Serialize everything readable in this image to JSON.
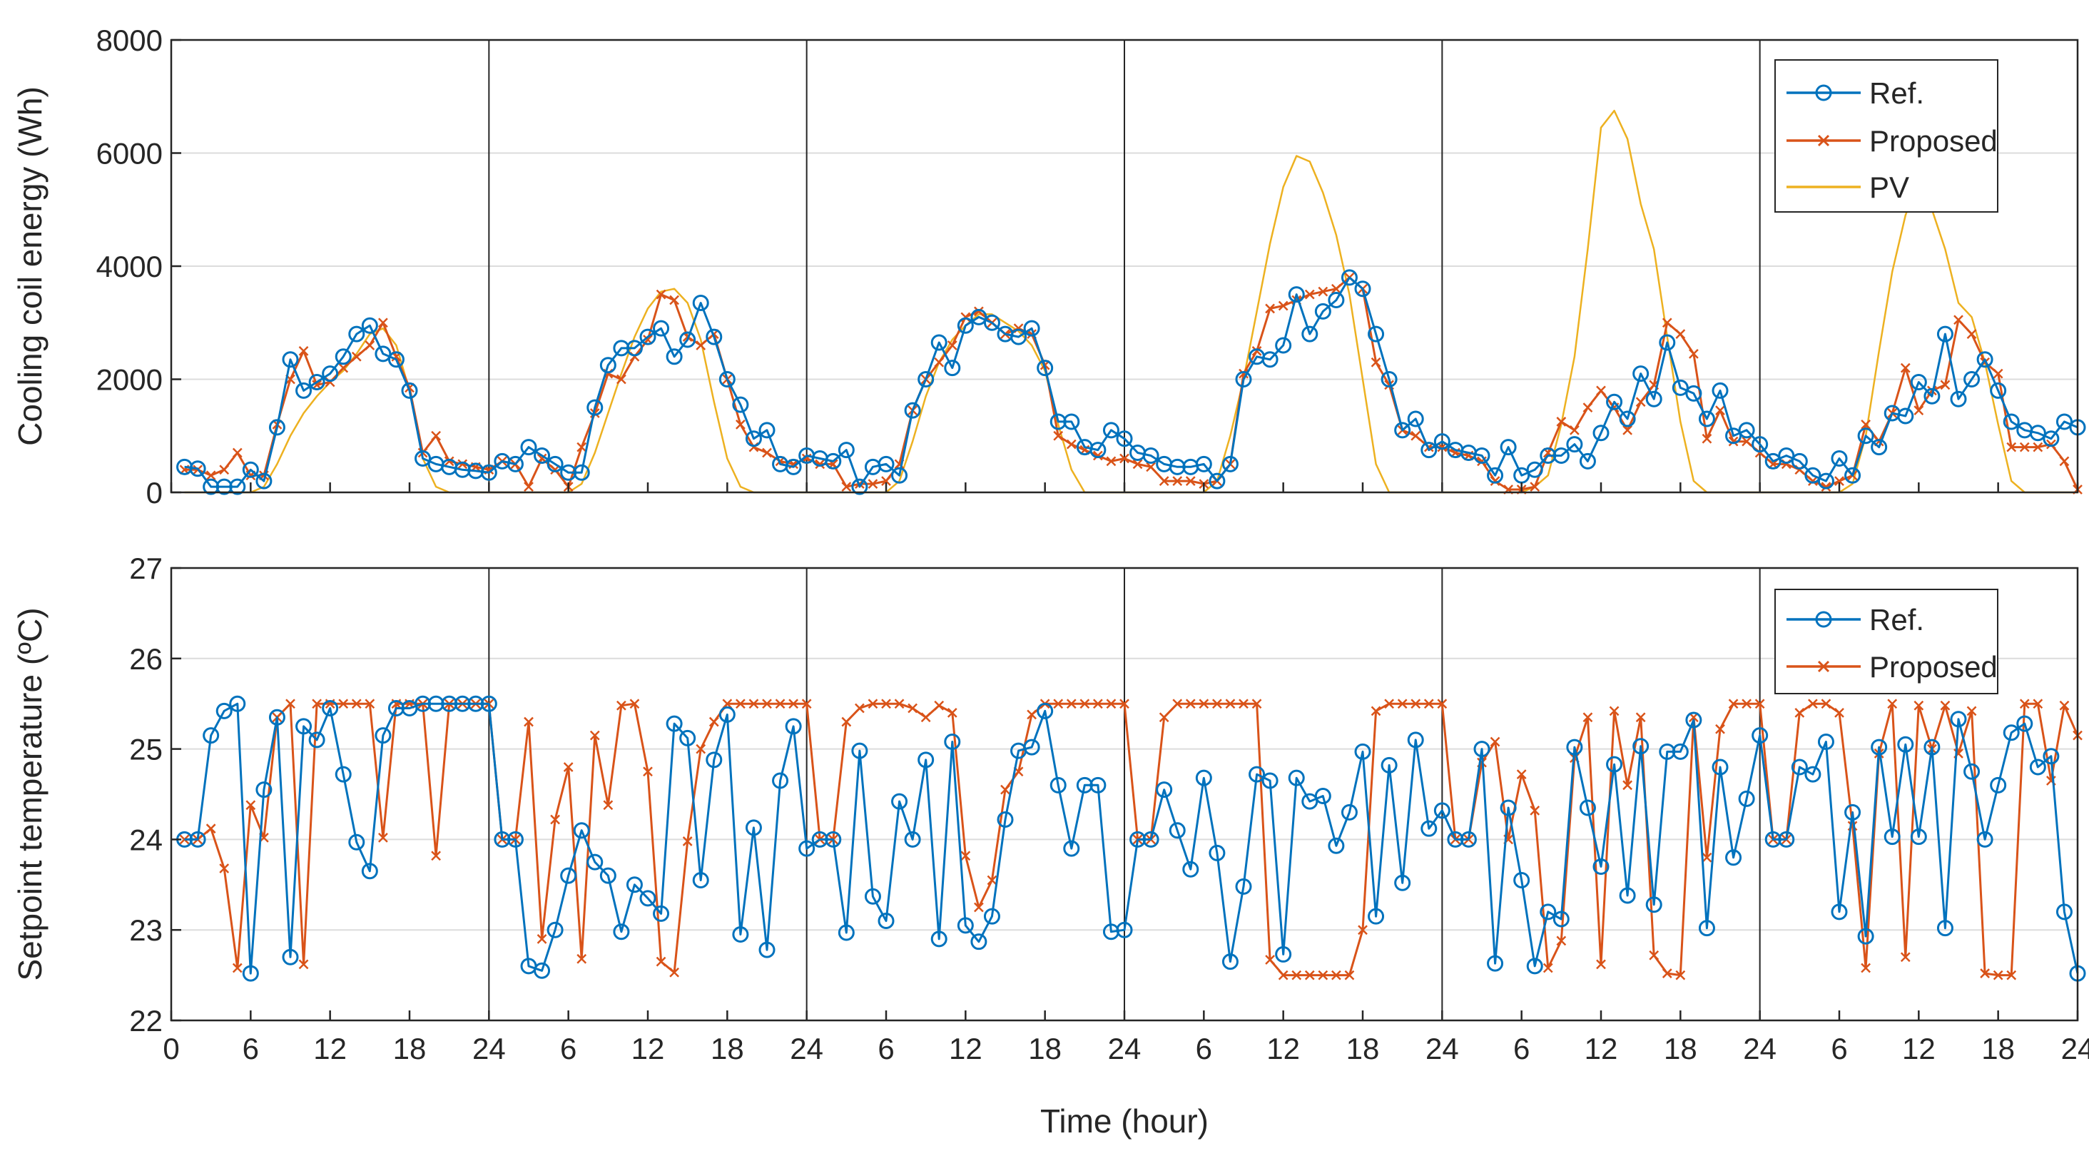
{
  "chart_data": [
    {
      "type": "line",
      "title": "",
      "xlabel": "",
      "ylabel": "Cooling coil energy (Wh)",
      "ylim": [
        0,
        8000
      ],
      "yticks": [
        0,
        2000,
        4000,
        6000,
        8000
      ],
      "xlim": [
        0,
        144
      ],
      "day_separators": [
        24,
        48,
        72,
        96,
        120
      ],
      "grid": "horizontal",
      "legend_position": "top-right",
      "legend": [
        "Ref.",
        "Proposed",
        "PV"
      ],
      "series": [
        {
          "name": "Ref.",
          "color": "#0072bd",
          "marker": "circle",
          "values": [
            450,
            420,
            100,
            100,
            100,
            400,
            200,
            1150,
            2350,
            1800,
            1950,
            2100,
            2400,
            2800,
            2950,
            2450,
            2350,
            1800,
            600,
            500,
            450,
            400,
            380,
            350,
            550,
            500,
            800,
            650,
            500,
            350,
            350,
            1500,
            2250,
            2550,
            2550,
            2750,
            2900,
            2400,
            2700,
            3350,
            2750,
            2000,
            1550,
            950,
            1100,
            500,
            450,
            650,
            600,
            550,
            750,
            100,
            450,
            500,
            300,
            1450,
            2000,
            2650,
            2200,
            2950,
            3100,
            3000,
            2800,
            2750,
            2900,
            2200,
            1250,
            1250,
            800,
            750,
            1100,
            950,
            700,
            650,
            500,
            450,
            450,
            500,
            200,
            500,
            2000,
            2400,
            2350,
            2600,
            3500,
            2800,
            3200,
            3400,
            3800,
            3600,
            2800,
            2000,
            1100,
            1300,
            750,
            900,
            750,
            700,
            650,
            300,
            800,
            300,
            400,
            650,
            650,
            850,
            550,
            1050,
            1600,
            1300,
            2100,
            1650,
            2650,
            1850,
            1750,
            1300,
            1800,
            1000,
            1100,
            850,
            550,
            650,
            550,
            300,
            200,
            600,
            300,
            1000,
            800,
            1400,
            1350,
            1950,
            1700,
            2800,
            1650,
            2000,
            2350,
            1800,
            1250,
            1100,
            1050,
            950,
            1250,
            1150
          ]
        },
        {
          "name": "Proposed",
          "color": "#d95319",
          "marker": "x",
          "values": [
            400,
            400,
            300,
            400,
            700,
            300,
            300,
            1200,
            2000,
            2500,
            1900,
            1950,
            2200,
            2400,
            2600,
            3000,
            2400,
            1850,
            700,
            1000,
            550,
            500,
            450,
            400,
            550,
            500,
            100,
            600,
            400,
            100,
            800,
            1400,
            2100,
            2000,
            2400,
            2700,
            3500,
            3400,
            2750,
            2600,
            2800,
            2000,
            1200,
            800,
            700,
            550,
            500,
            600,
            500,
            500,
            100,
            150,
            150,
            200,
            500,
            1450,
            2000,
            2300,
            2600,
            3100,
            3200,
            3000,
            2800,
            2900,
            2800,
            2250,
            1000,
            850,
            750,
            650,
            550,
            600,
            500,
            450,
            200,
            200,
            200,
            150,
            200,
            500,
            2100,
            2500,
            3250,
            3300,
            3400,
            3500,
            3550,
            3600,
            3800,
            3600,
            2300,
            1900,
            1100,
            1000,
            800,
            800,
            700,
            650,
            550,
            200,
            50,
            50,
            100,
            700,
            1250,
            1100,
            1500,
            1800,
            1500,
            1100,
            1600,
            1900,
            3000,
            2800,
            2450,
            950,
            1450,
            900,
            900,
            700,
            500,
            500,
            400,
            200,
            100,
            200,
            300,
            1200,
            900,
            1400,
            2200,
            1450,
            1800,
            1900,
            3050,
            2800,
            2300,
            2100,
            800,
            800,
            800,
            850,
            550,
            50
          ]
        },
        {
          "name": "PV",
          "color": "#edb120",
          "marker": "none",
          "values": [
            0,
            0,
            0,
            0,
            0,
            0,
            100,
            500,
            1000,
            1400,
            1700,
            1950,
            2150,
            2450,
            2800,
            2900,
            2600,
            1800,
            600,
            100,
            0,
            0,
            0,
            0,
            0,
            0,
            0,
            0,
            0,
            0,
            150,
            700,
            1400,
            2100,
            2750,
            3250,
            3550,
            3600,
            3350,
            2700,
            1600,
            600,
            100,
            0,
            0,
            0,
            0,
            0,
            0,
            0,
            0,
            0,
            0,
            0,
            200,
            900,
            1700,
            2300,
            2700,
            2950,
            3150,
            3150,
            3000,
            2850,
            2600,
            2150,
            1200,
            400,
            0,
            0,
            0,
            0,
            0,
            0,
            0,
            0,
            0,
            0,
            200,
            1000,
            2000,
            3200,
            4400,
            5400,
            5950,
            5850,
            5300,
            4550,
            3500,
            2000,
            500,
            0,
            0,
            0,
            0,
            0,
            0,
            0,
            0,
            0,
            0,
            0,
            100,
            300,
            1200,
            2400,
            4300,
            6450,
            6750,
            6250,
            5100,
            4300,
            2750,
            1250,
            200,
            0,
            0,
            0,
            0,
            0,
            0,
            0,
            0,
            0,
            0,
            0,
            150,
            1000,
            2500,
            3900,
            4900,
            5550,
            5000,
            4300,
            3350,
            3100,
            2300,
            1200,
            200,
            0,
            0,
            0,
            0,
            0
          ]
        }
      ]
    },
    {
      "type": "line",
      "title": "",
      "xlabel": "Time (hour)",
      "ylabel": "Setpoint temperature (ºC)",
      "ylim": [
        22,
        27
      ],
      "yticks": [
        22,
        23,
        24,
        25,
        26,
        27
      ],
      "xlim": [
        0,
        144
      ],
      "xtick_labels": [
        "0",
        "6",
        "12",
        "18",
        "24",
        "6",
        "12",
        "18",
        "24",
        "6",
        "12",
        "18",
        "24",
        "6",
        "12",
        "18",
        "24",
        "6",
        "12",
        "18",
        "24",
        "6",
        "12",
        "18",
        "24"
      ],
      "day_separators": [
        24,
        48,
        72,
        96,
        120
      ],
      "grid": "horizontal",
      "legend_position": "top-right",
      "legend": [
        "Ref.",
        "Proposed"
      ],
      "series": [
        {
          "name": "Ref.",
          "color": "#0072bd",
          "marker": "circle",
          "values": [
            24.0,
            24.0,
            25.15,
            25.42,
            25.5,
            22.52,
            24.55,
            25.35,
            22.7,
            25.25,
            25.1,
            25.45,
            24.72,
            23.97,
            23.65,
            25.15,
            25.45,
            25.45,
            25.5,
            25.5,
            25.5,
            25.5,
            25.5,
            25.5,
            24.0,
            24.0,
            22.6,
            22.55,
            23.0,
            23.6,
            24.1,
            23.75,
            23.6,
            22.98,
            23.5,
            23.35,
            23.18,
            25.28,
            25.12,
            23.55,
            24.88,
            25.38,
            22.95,
            24.13,
            22.78,
            24.65,
            25.25,
            23.9,
            24.0,
            24.0,
            22.97,
            24.98,
            23.37,
            23.1,
            24.42,
            24.0,
            24.88,
            22.9,
            25.08,
            23.05,
            22.87,
            23.15,
            24.22,
            24.98,
            25.02,
            25.42,
            24.6,
            23.9,
            24.6,
            24.6,
            22.98,
            23.0,
            24.0,
            24.0,
            24.55,
            24.1,
            23.67,
            24.68,
            23.85,
            22.65,
            23.48,
            24.72,
            24.65,
            22.73,
            24.68,
            24.42,
            24.48,
            23.93,
            24.3,
            24.97,
            23.15,
            24.82,
            23.52,
            25.1,
            24.12,
            24.32,
            24.0,
            24.0,
            25.0,
            22.63,
            24.35,
            23.55,
            22.6,
            23.2,
            23.12,
            25.02,
            24.35,
            23.7,
            24.83,
            23.38,
            25.03,
            23.28,
            24.97,
            24.97,
            25.32,
            23.02,
            24.8,
            23.8,
            24.45,
            25.15,
            24.0,
            24.0,
            24.8,
            24.72,
            25.08,
            23.2,
            24.3,
            22.93,
            25.02,
            24.03,
            25.05,
            24.03,
            25.02,
            23.02,
            25.33,
            24.75,
            24.0,
            24.6,
            25.18,
            25.28,
            24.8,
            24.92,
            23.2,
            22.52
          ]
        },
        {
          "name": "Proposed",
          "color": "#d95319",
          "marker": "x",
          "values": [
            24.0,
            24.0,
            24.12,
            23.68,
            22.58,
            24.38,
            24.02,
            25.35,
            25.5,
            22.62,
            25.5,
            25.5,
            25.5,
            25.5,
            25.5,
            24.02,
            25.5,
            25.5,
            25.5,
            23.82,
            25.5,
            25.5,
            25.5,
            25.5,
            24.0,
            24.0,
            25.3,
            22.9,
            24.22,
            24.8,
            22.68,
            25.15,
            24.38,
            25.48,
            25.5,
            24.75,
            22.65,
            22.53,
            23.98,
            25.0,
            25.3,
            25.5,
            25.5,
            25.5,
            25.5,
            25.5,
            25.5,
            25.5,
            24.0,
            24.0,
            25.3,
            25.45,
            25.5,
            25.5,
            25.5,
            25.45,
            25.35,
            25.48,
            25.4,
            23.82,
            23.25,
            23.55,
            24.55,
            24.75,
            25.38,
            25.5,
            25.5,
            25.5,
            25.5,
            25.5,
            25.5,
            25.5,
            24.0,
            24.0,
            25.35,
            25.5,
            25.5,
            25.5,
            25.5,
            25.5,
            25.5,
            25.5,
            22.67,
            22.5,
            22.5,
            22.5,
            22.5,
            22.5,
            22.5,
            23.0,
            25.42,
            25.5,
            25.5,
            25.5,
            25.5,
            25.5,
            24.0,
            24.0,
            24.85,
            25.08,
            24.0,
            24.72,
            24.32,
            22.58,
            22.88,
            24.9,
            25.35,
            22.62,
            25.42,
            24.6,
            25.35,
            22.72,
            22.52,
            22.5,
            25.35,
            23.8,
            25.22,
            25.5,
            25.5,
            25.5,
            24.0,
            24.0,
            25.4,
            25.5,
            25.5,
            25.4,
            24.15,
            22.58,
            24.95,
            25.5,
            22.7,
            25.48,
            25.0,
            25.48,
            24.95,
            25.42,
            22.52,
            22.5,
            22.5,
            25.5,
            25.5,
            24.65,
            25.48,
            25.15
          ]
        }
      ]
    }
  ]
}
